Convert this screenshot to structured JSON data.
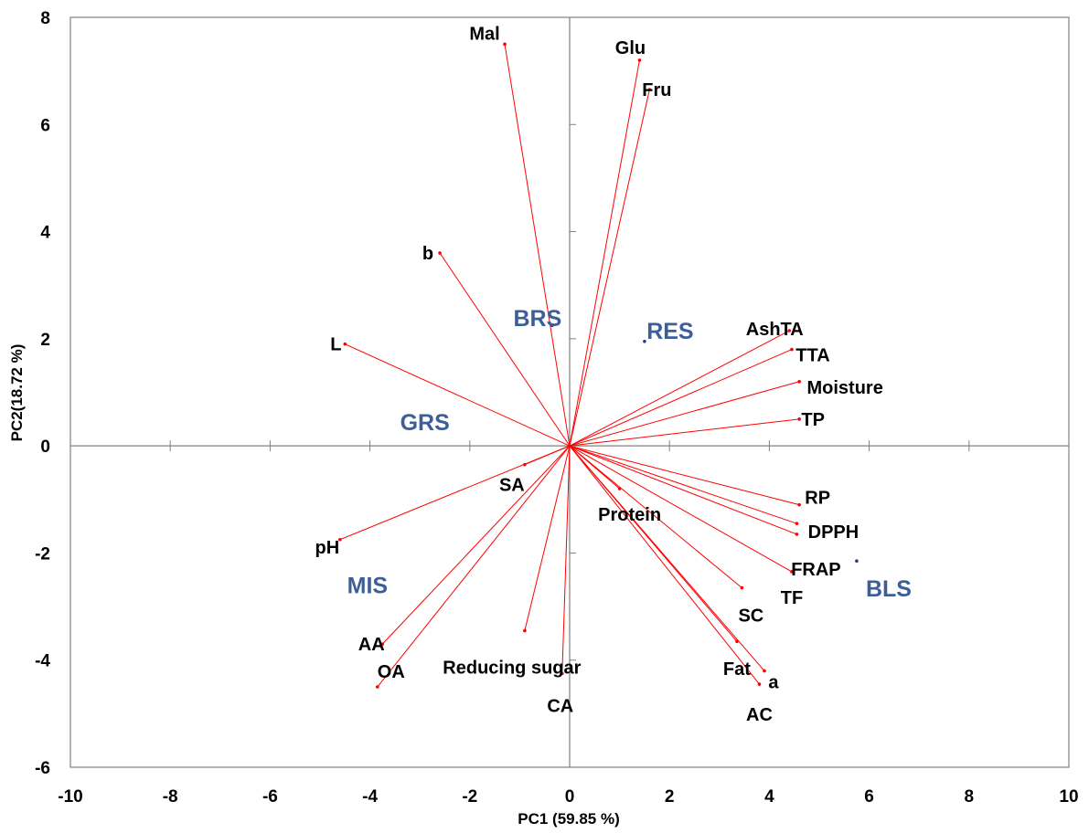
{
  "chart_data": {
    "type": "scatter",
    "subtype": "biplot",
    "title": "",
    "xlabel": "PC1 (59.85 %)",
    "ylabel": "PC2(18.72 %)",
    "xlim": [
      -10,
      10
    ],
    "ylim": [
      -6,
      8
    ],
    "xticks": [
      -10,
      -8,
      -6,
      -4,
      -2,
      0,
      2,
      4,
      6,
      8,
      10
    ],
    "yticks": [
      -6,
      -4,
      -2,
      0,
      2,
      4,
      6,
      8
    ],
    "grid": false,
    "colors": {
      "loading": "#ff0000",
      "sample": "#1f3c88",
      "sample_label": "#3d5f98",
      "axis": "#808080"
    },
    "loadings": [
      {
        "name": "Mal",
        "x": -1.3,
        "y": 7.5
      },
      {
        "name": "Glu",
        "x": 1.4,
        "y": 7.2
      },
      {
        "name": "Fru",
        "x": 1.6,
        "y": 6.65
      },
      {
        "name": "b",
        "x": -2.6,
        "y": 3.6
      },
      {
        "name": "L",
        "x": -4.5,
        "y": 1.9
      },
      {
        "name": "AshTA",
        "x": 4.4,
        "y": 2.15
      },
      {
        "name": "TTA",
        "x": 4.45,
        "y": 1.8
      },
      {
        "name": "Moisture",
        "x": 4.6,
        "y": 1.2
      },
      {
        "name": "TP",
        "x": 4.6,
        "y": 0.5
      },
      {
        "name": "RP",
        "x": 4.6,
        "y": -1.1
      },
      {
        "name": "DPPH",
        "x": 4.55,
        "y": -1.45
      },
      {
        "name": "FRAP",
        "x": 4.55,
        "y": -1.65
      },
      {
        "name": "TF",
        "x": 4.45,
        "y": -2.35
      },
      {
        "name": "SC",
        "x": 3.45,
        "y": -2.65
      },
      {
        "name": "Fat",
        "x": 3.35,
        "y": -3.65
      },
      {
        "name": "a",
        "x": 3.9,
        "y": -4.2
      },
      {
        "name": "AC",
        "x": 3.8,
        "y": -4.45
      },
      {
        "name": "Protein",
        "x": 1.0,
        "y": -0.8
      },
      {
        "name": "SA",
        "x": -0.9,
        "y": -0.35
      },
      {
        "name": "pH",
        "x": -4.6,
        "y": -1.75
      },
      {
        "name": "AA",
        "x": -3.75,
        "y": -3.7
      },
      {
        "name": "OA",
        "x": -3.85,
        "y": -4.5
      },
      {
        "name": "Reducing sugar",
        "x": -0.9,
        "y": -3.45
      },
      {
        "name": "CA",
        "x": -0.15,
        "y": -4.25
      }
    ],
    "samples": [
      {
        "name": "BRS",
        "x": -0.35,
        "y": 2.25
      },
      {
        "name": "RES",
        "x": 1.5,
        "y": 1.95
      },
      {
        "name": "GRS",
        "x": -2.9,
        "y": 0.45
      },
      {
        "name": "MIS",
        "x": -4.05,
        "y": -2.6
      },
      {
        "name": "BLS",
        "x": 5.75,
        "y": -2.15
      }
    ]
  }
}
